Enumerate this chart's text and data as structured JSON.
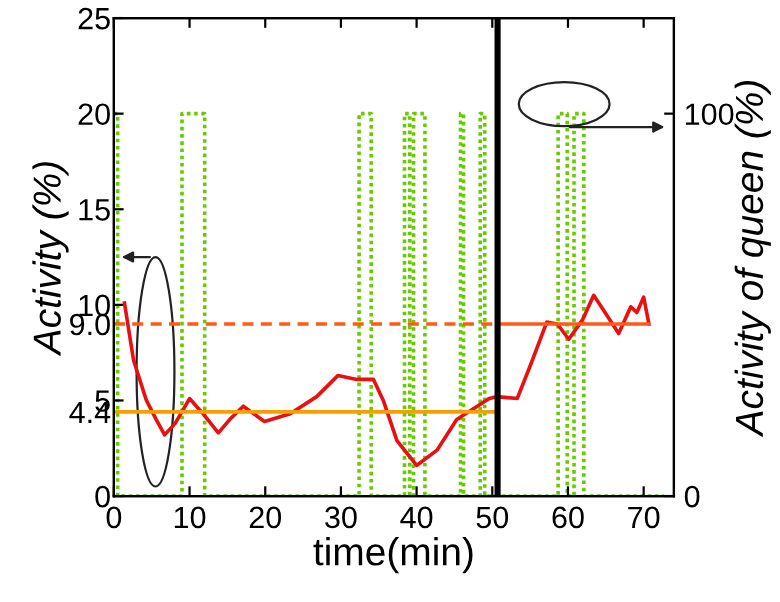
{
  "chart_data": {
    "type": "line",
    "xlabel": "time(min)",
    "ylabel": "Activity (%)",
    "y2label": "Activity of queen (%)",
    "xlim": [
      0,
      74
    ],
    "xticks": [
      0,
      10,
      20,
      30,
      40,
      50,
      60,
      70
    ],
    "ylim": [
      0,
      25
    ],
    "yticks": [
      0,
      4.4,
      5,
      {
        "value": 9,
        "label": "9.0"
      },
      10,
      15,
      20,
      25
    ],
    "y2lim": [
      0,
      125
    ],
    "y2ticks": [
      0,
      100
    ],
    "grid": false,
    "series": [
      {
        "type": "line",
        "color": "#e81010",
        "line_style": "solid",
        "x": [
          1.4,
          2.6,
          4.3,
          5.6,
          6.7,
          8.1,
          10.0,
          11.8,
          13.8,
          15.3,
          17.1,
          19.9,
          23.3,
          26.8,
          29.6,
          32.1,
          34.3,
          35.6,
          37.4,
          40.0,
          42.7,
          45.3,
          49.6,
          50.6,
          53.3,
          55.0,
          57.2,
          58.6,
          60.1,
          61.9,
          63.4,
          64.9,
          66.7,
          68.3,
          69.1,
          70.0,
          70.7
        ],
        "values": [
          10.1,
          7.1,
          5.0,
          4.0,
          3.2,
          3.8,
          5.1,
          4.3,
          3.3,
          4.0,
          4.7,
          3.9,
          4.3,
          5.2,
          6.3,
          6.1,
          6.1,
          5.0,
          2.9,
          1.6,
          2.4,
          4.0,
          5.1,
          5.2,
          5.1,
          6.8,
          9.1,
          9.0,
          8.2,
          9.2,
          10.5,
          9.6,
          8.5,
          9.9,
          9.6,
          10.4,
          9.0
        ]
      },
      {
        "type": "step",
        "axis": "y2",
        "color": "#66cc00",
        "line_style": "dotted",
        "x": [
          0,
          0.5,
          9,
          12,
          32.4,
          34,
          38.4,
          39.1,
          39.6,
          41.1,
          45.8,
          46.2,
          48.4,
          49,
          58.7,
          59.9,
          60.8,
          62.1,
          72.7
        ],
        "values": [
          100,
          0,
          100,
          0,
          100,
          0,
          100,
          0,
          100,
          0,
          100,
          0,
          100,
          0,
          100,
          0,
          100,
          0,
          0
        ]
      },
      {
        "type": "line",
        "color": "#f5a000",
        "line_style": "solid",
        "x": [
          0,
          50.4
        ],
        "values": [
          4.4,
          4.4
        ]
      },
      {
        "type": "line",
        "color": "#ff5a1a",
        "line_style": "dashed",
        "x": [
          0,
          50
        ],
        "values": [
          9.0,
          9.0
        ]
      },
      {
        "type": "line",
        "color": "#ff5a1a",
        "line_style": "solid",
        "x": [
          51,
          70.7
        ],
        "values": [
          9.0,
          9.0
        ]
      }
    ],
    "ref_lines": [
      {
        "axis": "x",
        "value": 50.7,
        "color": "#000000",
        "line_style": "solid"
      }
    ]
  }
}
